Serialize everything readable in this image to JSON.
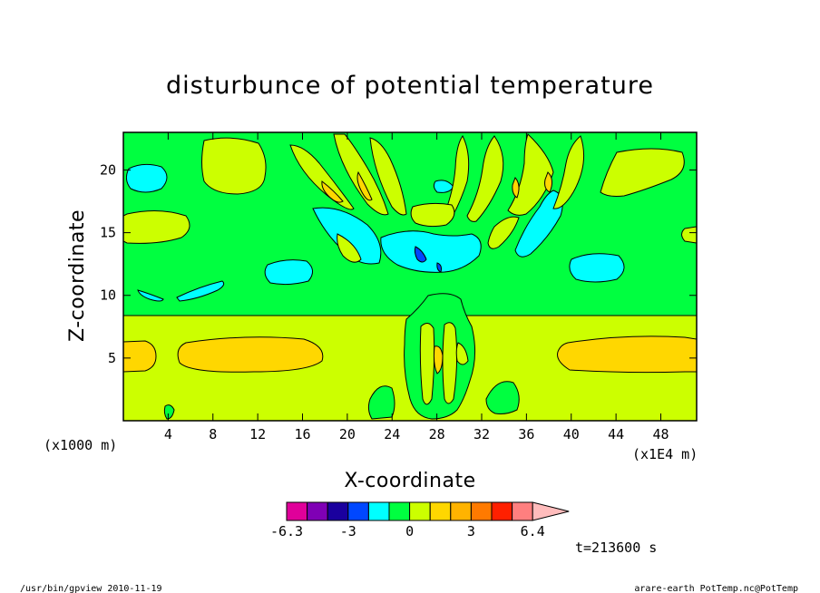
{
  "chart_data": {
    "type": "heatmap",
    "title": "disturbunce of potential temperature",
    "xlabel": "X-coordinate",
    "ylabel": "Z-coordinate",
    "x_units": "(x1E4 m)",
    "y_units": "(x1000 m)",
    "xlim": [
      0,
      51.2
    ],
    "ylim": [
      0,
      23
    ],
    "x_ticks": [
      4,
      8,
      12,
      16,
      20,
      24,
      28,
      32,
      36,
      40,
      44,
      48
    ],
    "y_ticks": [
      5,
      10,
      15,
      20
    ],
    "colorbar": {
      "colors": [
        "#e0009a",
        "#7f00b5",
        "#1a009e",
        "#0047ff",
        "#00ffff",
        "#00ff40",
        "#ccff00",
        "#ffd700",
        "#ffb300",
        "#ff7a00",
        "#ff2000",
        "#ff7f7f",
        "#ffbcbc"
      ],
      "labels": [
        "-6.3",
        "-3",
        "0",
        "3",
        "6.4"
      ]
    },
    "time_label": "t=213600 s"
  },
  "footer": {
    "left": "/usr/bin/gpview   2010-11-19",
    "right": "arare-earth_PotTemp.nc@PotTemp"
  }
}
